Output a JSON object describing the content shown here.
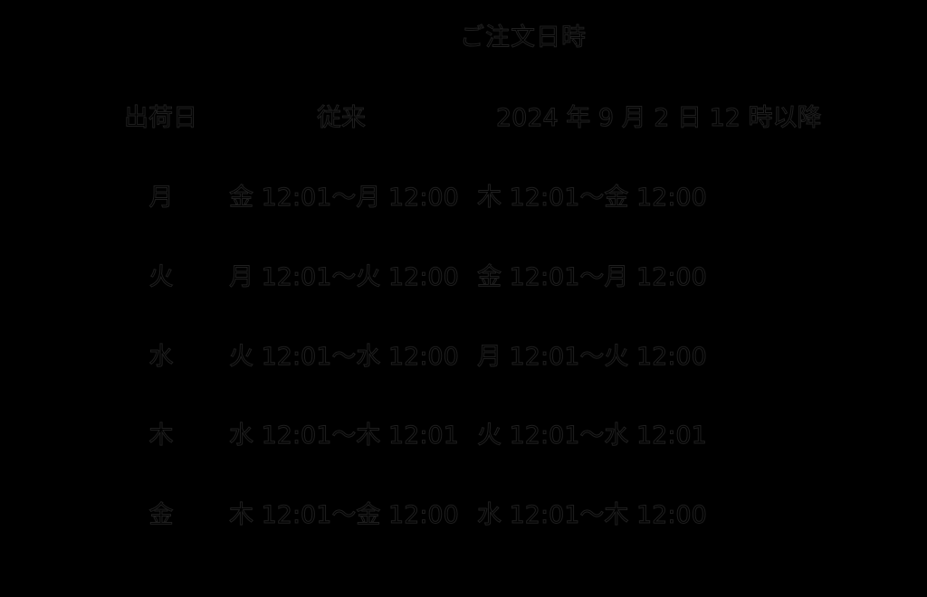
{
  "title": "ご注文日時",
  "colors": {
    "background": "#000000",
    "text_fill": "#000000",
    "text_edge": "#1f1f1f"
  },
  "table": {
    "headers": {
      "ship_day": "出荷日",
      "conventional": "従来",
      "new_schedule": "2024 年 9 月 2 日 12 時以降"
    },
    "rows": [
      {
        "day": "月",
        "conventional": "金 12:01～月 12:00",
        "new_schedule": "木 12:01～金 12:00"
      },
      {
        "day": "火",
        "conventional": "月 12:01～火 12:00",
        "new_schedule": "金 12:01～月 12:00"
      },
      {
        "day": "水",
        "conventional": "火 12:01～水 12:00",
        "new_schedule": "月 12:01～火 12:00"
      },
      {
        "day": "木",
        "conventional": "水 12:01～木 12:01",
        "new_schedule": "火 12:01～水 12:01"
      },
      {
        "day": "金",
        "conventional": "木 12:01～金 12:00",
        "new_schedule": "水 12:01～木 12:00"
      }
    ]
  }
}
